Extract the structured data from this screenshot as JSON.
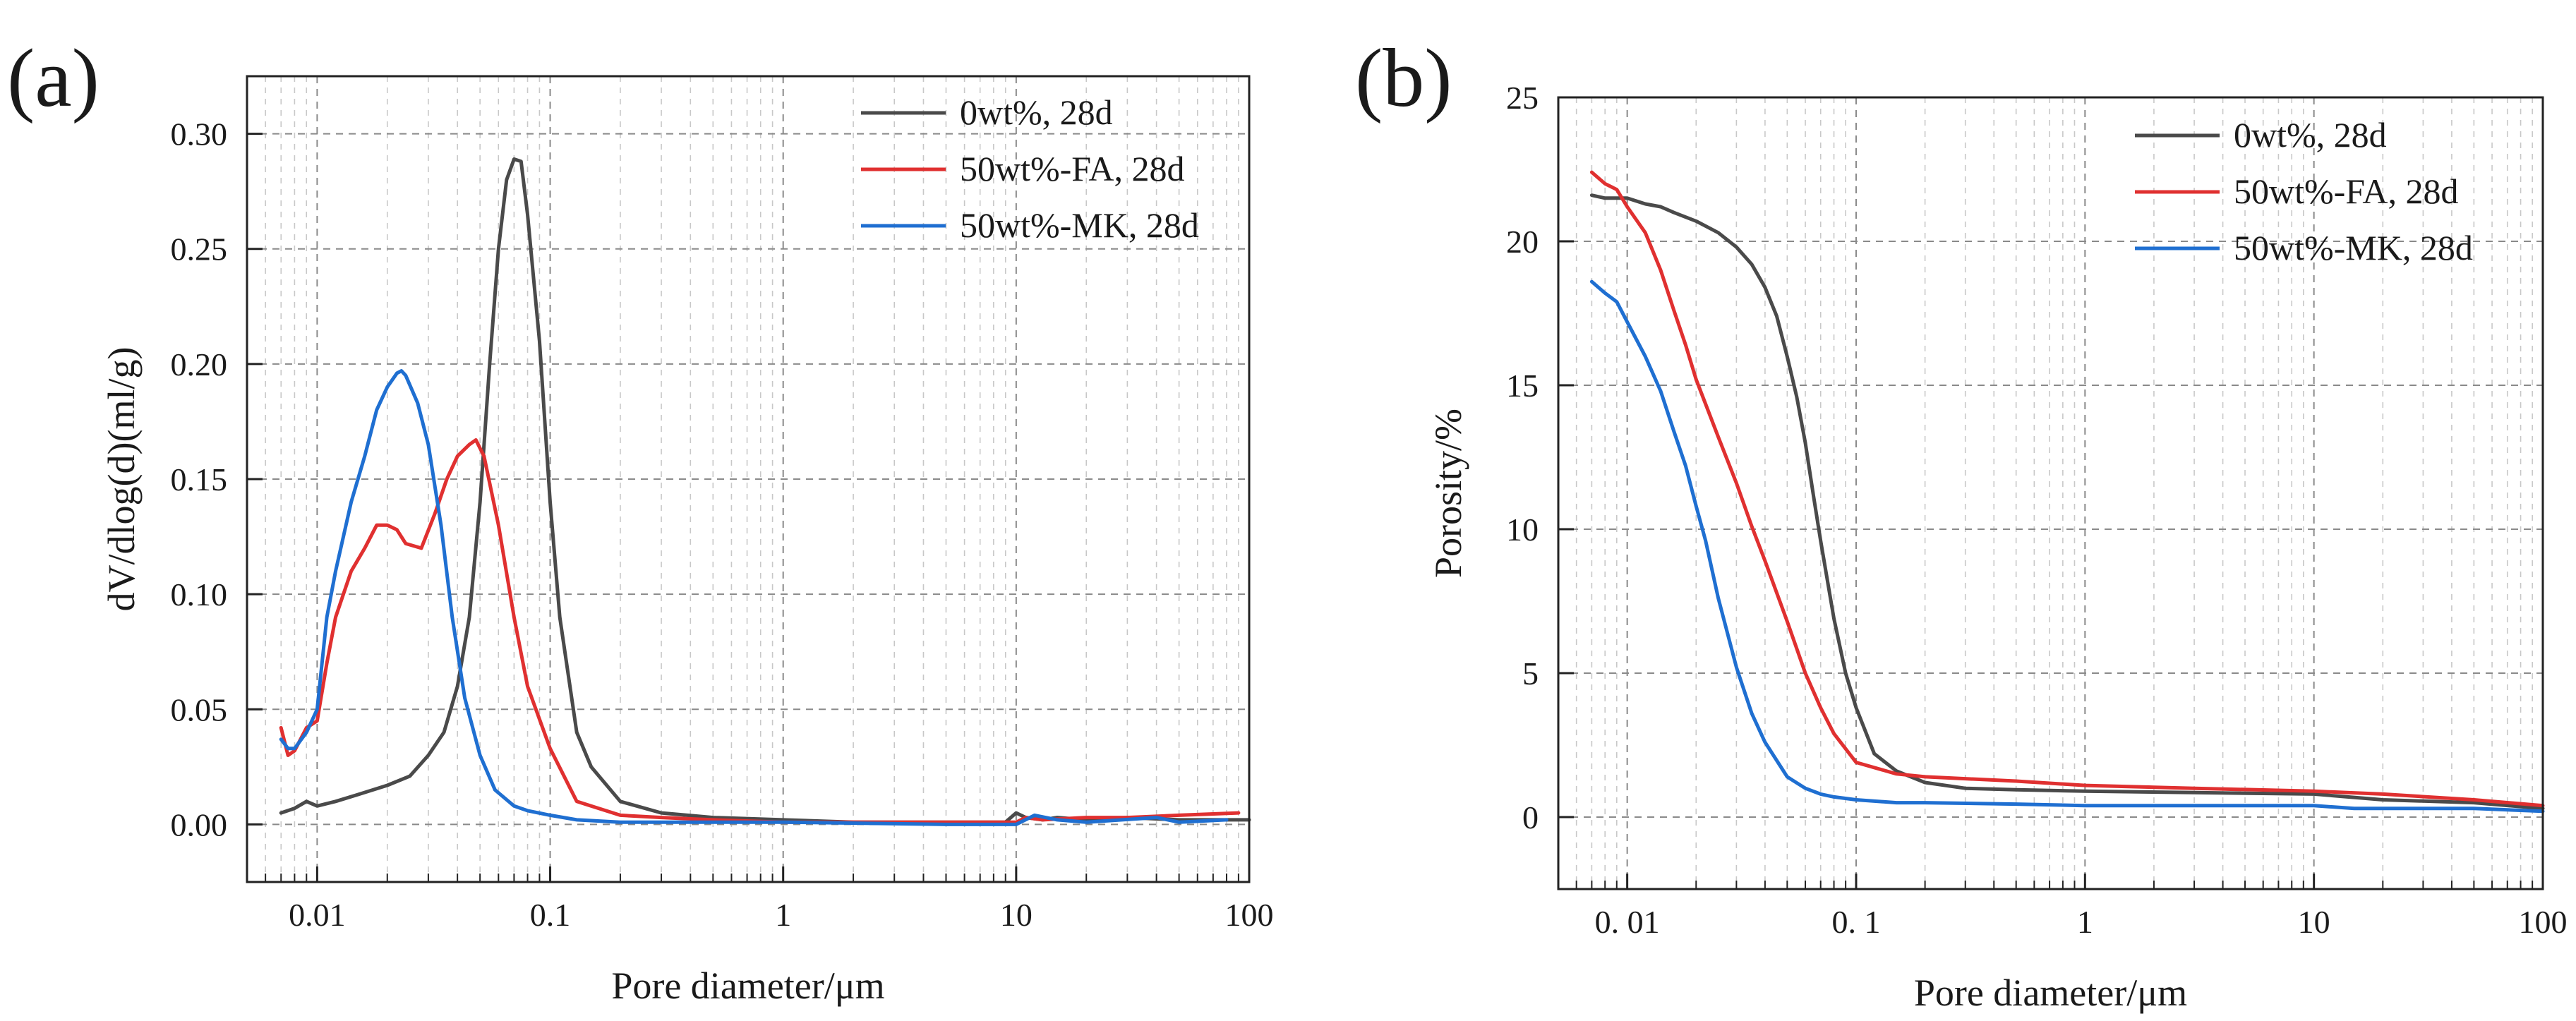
{
  "chart_data": [
    {
      "panel": "(a)",
      "type": "line",
      "xlabel": "Pore diameter/μm",
      "ylabel": "dV/dlog(d)(ml/g)",
      "xscale": "log",
      "xlim": [
        0.005,
        100
      ],
      "ylim": [
        -0.025,
        0.325
      ],
      "xticks": [
        0.01,
        0.1,
        1,
        10,
        100
      ],
      "xtick_labels": [
        "0.01",
        "0.1",
        "1",
        "10",
        "100"
      ],
      "yticks": [
        0,
        0.05,
        0.1,
        0.15,
        0.2,
        0.25,
        0.3
      ],
      "ytick_labels": [
        "0.00",
        "0.05",
        "0.10",
        "0.15",
        "0.20",
        "0.25",
        "0.30"
      ],
      "grid": true,
      "legend_position": "top-right",
      "series": [
        {
          "name": "0wt%,   28d",
          "color": "#4a4a4a",
          "x": [
            0.007,
            0.008,
            0.009,
            0.01,
            0.012,
            0.015,
            0.02,
            0.025,
            0.03,
            0.035,
            0.04,
            0.045,
            0.05,
            0.055,
            0.06,
            0.065,
            0.07,
            0.075,
            0.08,
            0.09,
            0.1,
            0.11,
            0.13,
            0.15,
            0.2,
            0.3,
            0.5,
            1,
            2,
            5,
            9,
            10,
            11,
            13,
            15,
            20,
            30,
            50,
            100
          ],
          "y": [
            0.005,
            0.007,
            0.01,
            0.008,
            0.01,
            0.013,
            0.017,
            0.021,
            0.03,
            0.04,
            0.06,
            0.09,
            0.14,
            0.2,
            0.25,
            0.28,
            0.289,
            0.288,
            0.265,
            0.21,
            0.14,
            0.09,
            0.04,
            0.025,
            0.01,
            0.005,
            0.003,
            0.002,
            0.001,
            0.001,
            0.001,
            0.005,
            0.003,
            0.002,
            0.003,
            0.002,
            0.003,
            0.002,
            0.002
          ]
        },
        {
          "name": "50wt%-FA,   28d",
          "color": "#e03030",
          "x": [
            0.007,
            0.0075,
            0.008,
            0.009,
            0.01,
            0.011,
            0.012,
            0.014,
            0.016,
            0.018,
            0.02,
            0.022,
            0.024,
            0.028,
            0.032,
            0.036,
            0.04,
            0.045,
            0.048,
            0.052,
            0.06,
            0.07,
            0.08,
            0.1,
            0.13,
            0.2,
            0.3,
            0.5,
            1,
            3,
            10,
            11,
            13,
            20,
            30,
            50,
            90
          ],
          "y": [
            0.042,
            0.03,
            0.032,
            0.042,
            0.045,
            0.07,
            0.09,
            0.11,
            0.12,
            0.13,
            0.13,
            0.128,
            0.122,
            0.12,
            0.135,
            0.15,
            0.16,
            0.165,
            0.167,
            0.16,
            0.13,
            0.09,
            0.06,
            0.033,
            0.01,
            0.004,
            0.003,
            0.002,
            0.001,
            0.001,
            0.001,
            0.003,
            0.002,
            0.003,
            0.003,
            0.004,
            0.005
          ]
        },
        {
          "name": "50wt%-MK,   28d",
          "color": "#1f6fd1",
          "x": [
            0.007,
            0.0075,
            0.008,
            0.009,
            0.01,
            0.011,
            0.012,
            0.014,
            0.016,
            0.018,
            0.02,
            0.022,
            0.023,
            0.024,
            0.027,
            0.03,
            0.034,
            0.038,
            0.043,
            0.05,
            0.058,
            0.07,
            0.08,
            0.1,
            0.13,
            0.2,
            0.5,
            1,
            5,
            10,
            12,
            15,
            20,
            40,
            50,
            80
          ],
          "y": [
            0.037,
            0.033,
            0.033,
            0.04,
            0.05,
            0.09,
            0.11,
            0.14,
            0.16,
            0.18,
            0.19,
            0.196,
            0.197,
            0.195,
            0.183,
            0.165,
            0.13,
            0.09,
            0.055,
            0.03,
            0.015,
            0.008,
            0.006,
            0.004,
            0.002,
            0.001,
            0.001,
            0.001,
            0.0,
            0.0,
            0.004,
            0.002,
            0.001,
            0.003,
            0.001,
            0.002
          ]
        }
      ]
    },
    {
      "panel": "(b)",
      "type": "line",
      "xlabel": "Pore diameter/μm",
      "ylabel": "Porosity/%",
      "xscale": "log",
      "xlim": [
        0.005,
        100
      ],
      "ylim": [
        -2.5,
        25
      ],
      "xticks": [
        0.01,
        0.1,
        1,
        10,
        100
      ],
      "xtick_labels": [
        "0. 01",
        "0. 1",
        "1",
        "10",
        "100"
      ],
      "yticks": [
        0,
        5,
        10,
        15,
        20,
        25
      ],
      "ytick_labels": [
        "0",
        "5",
        "10",
        "15",
        "20",
        "25"
      ],
      "grid": true,
      "legend_position": "top-right",
      "series": [
        {
          "name": "0wt%,   28d",
          "color": "#4a4a4a",
          "x": [
            0.007,
            0.008,
            0.01,
            0.012,
            0.014,
            0.016,
            0.02,
            0.025,
            0.03,
            0.035,
            0.04,
            0.045,
            0.05,
            0.055,
            0.06,
            0.065,
            0.07,
            0.08,
            0.09,
            0.1,
            0.12,
            0.15,
            0.2,
            0.3,
            0.5,
            1,
            3,
            10,
            20,
            50,
            100
          ],
          "y": [
            21.6,
            21.5,
            21.5,
            21.3,
            21.2,
            21.0,
            20.7,
            20.3,
            19.8,
            19.2,
            18.4,
            17.4,
            16.0,
            14.6,
            13.0,
            11.2,
            9.6,
            6.9,
            5.0,
            3.8,
            2.2,
            1.6,
            1.2,
            1.0,
            0.95,
            0.9,
            0.85,
            0.8,
            0.6,
            0.5,
            0.3
          ]
        },
        {
          "name": "50wt%-FA,   28d",
          "color": "#e03030",
          "x": [
            0.007,
            0.008,
            0.009,
            0.01,
            0.012,
            0.014,
            0.016,
            0.018,
            0.02,
            0.025,
            0.03,
            0.035,
            0.04,
            0.05,
            0.06,
            0.07,
            0.08,
            0.1,
            0.15,
            0.2,
            0.5,
            1,
            3,
            10,
            20,
            50,
            100
          ],
          "y": [
            22.4,
            22.0,
            21.8,
            21.2,
            20.3,
            19.0,
            17.6,
            16.4,
            15.2,
            13.2,
            11.6,
            10.1,
            8.9,
            6.8,
            5.0,
            3.8,
            2.9,
            1.9,
            1.5,
            1.4,
            1.25,
            1.1,
            1.0,
            0.9,
            0.8,
            0.6,
            0.4
          ]
        },
        {
          "name": "50wt%-MK,   28d",
          "color": "#1f6fd1",
          "x": [
            0.007,
            0.008,
            0.009,
            0.01,
            0.012,
            0.014,
            0.016,
            0.018,
            0.02,
            0.022,
            0.025,
            0.03,
            0.035,
            0.04,
            0.05,
            0.06,
            0.07,
            0.08,
            0.1,
            0.15,
            0.2,
            0.5,
            1,
            5,
            10,
            15,
            20,
            50,
            100
          ],
          "y": [
            18.6,
            18.2,
            17.9,
            17.2,
            16.0,
            14.8,
            13.4,
            12.2,
            10.8,
            9.6,
            7.6,
            5.2,
            3.6,
            2.6,
            1.4,
            1.0,
            0.8,
            0.7,
            0.6,
            0.5,
            0.5,
            0.45,
            0.4,
            0.4,
            0.4,
            0.3,
            0.3,
            0.3,
            0.2
          ]
        }
      ]
    }
  ]
}
